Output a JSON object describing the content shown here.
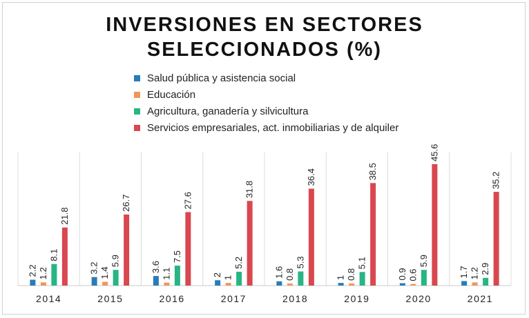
{
  "chart_data": {
    "type": "bar",
    "title": "INVERSIONES EN SECTORES SELECCIONADOS (%)",
    "title_lines": [
      "INVERSIONES EN SECTORES",
      "SELECCIONADOS (%)"
    ],
    "categories": [
      "2014",
      "2015",
      "2016",
      "2017",
      "2018",
      "2019",
      "2020",
      "2021"
    ],
    "series": [
      {
        "name": "Salud pública y asistencia social",
        "color": "#2a7cb8",
        "values": [
          2.2,
          3.2,
          3.6,
          2,
          1.6,
          1,
          0.9,
          1.7
        ]
      },
      {
        "name": "Educación",
        "color": "#f0965a",
        "values": [
          1.2,
          1.4,
          1.1,
          1,
          0.8,
          0.8,
          0.6,
          1.2
        ]
      },
      {
        "name": "Agricultura, ganadería y silvicultura",
        "color": "#27b584",
        "values": [
          8.1,
          5.9,
          7.5,
          5.2,
          5.3,
          5.1,
          5.9,
          2.9
        ]
      },
      {
        "name": "Servicios empresariales, act. inmobiliarias y de alquiler",
        "color": "#d9474f",
        "values": [
          21.8,
          26.7,
          27.6,
          31.8,
          36.4,
          38.5,
          45.6,
          35.2
        ]
      }
    ],
    "ylim": [
      0,
      50
    ],
    "grid": true,
    "legend_position": "top"
  }
}
